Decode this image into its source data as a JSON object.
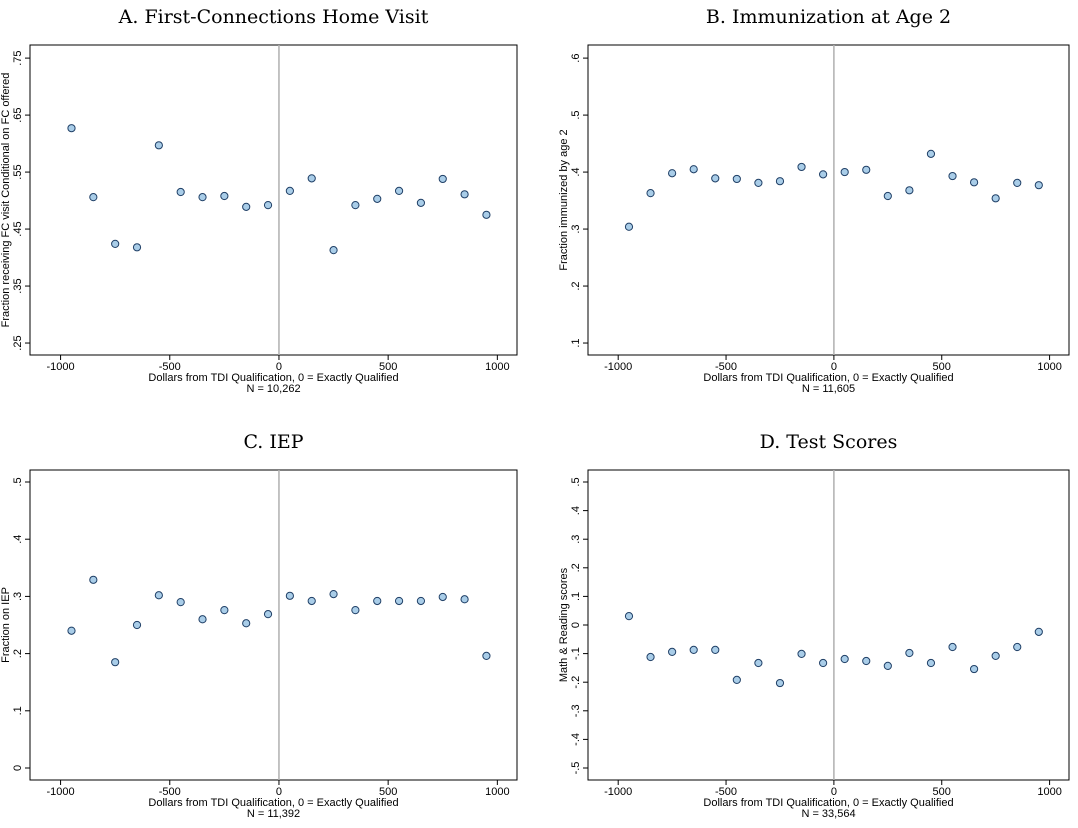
{
  "chart_data": [
    {
      "type": "scatter",
      "title": "A. First-Connections Home Visit",
      "xlabel": "Dollars from TDI Qualification, 0 = Exactly Qualified",
      "note": "N = 10,262",
      "ylabel": "Fraction receiving FC visit Conditional on FC offered",
      "x": [
        -950,
        -850,
        -750,
        -650,
        -550,
        -450,
        -350,
        -250,
        -150,
        -50,
        50,
        150,
        250,
        350,
        450,
        550,
        650,
        750,
        850,
        950
      ],
      "values": [
        0.627,
        0.506,
        0.424,
        0.418,
        0.597,
        0.515,
        0.506,
        0.508,
        0.489,
        0.492,
        0.517,
        0.539,
        0.413,
        0.492,
        0.503,
        0.517,
        0.496,
        0.538,
        0.511,
        0.475
      ],
      "xlim": [
        -1140,
        1090
      ],
      "xticks": [
        -1000,
        -500,
        0,
        500,
        1000
      ],
      "vline": 0,
      "ylim": [
        0.229,
        0.773
      ],
      "yticks": [
        {
          "value": 0.25,
          "label": ".25"
        },
        {
          "value": 0.35,
          "label": ".35"
        },
        {
          "value": 0.45,
          "label": ".45"
        },
        {
          "value": 0.55,
          "label": ".55"
        },
        {
          "value": 0.65,
          "label": ".65"
        },
        {
          "value": 0.75,
          "label": ".75"
        }
      ],
      "color": "#a9cde8",
      "edge_color": "#1f3f66",
      "grid": false
    },
    {
      "type": "scatter",
      "title": "B. Immunization at Age 2",
      "xlabel": "Dollars from TDI Qualification, 0 = Exactly Qualified",
      "note": "N = 11,605",
      "ylabel": "Fraction immunized by age 2",
      "x": [
        -950,
        -850,
        -750,
        -650,
        -550,
        -450,
        -350,
        -250,
        -150,
        -50,
        50,
        150,
        250,
        350,
        450,
        550,
        650,
        750,
        850,
        950
      ],
      "values": [
        0.304,
        0.363,
        0.398,
        0.405,
        0.389,
        0.388,
        0.381,
        0.384,
        0.409,
        0.396,
        0.4,
        0.404,
        0.358,
        0.368,
        0.432,
        0.393,
        0.382,
        0.354,
        0.381,
        0.377
      ],
      "xlim": [
        -1140,
        1090
      ],
      "xticks": [
        -1000,
        -500,
        0,
        500,
        1000
      ],
      "vline": 0,
      "ylim": [
        0.079,
        0.623
      ],
      "yticks": [
        {
          "value": 0.1,
          "label": ".1"
        },
        {
          "value": 0.2,
          "label": ".2"
        },
        {
          "value": 0.3,
          "label": ".3"
        },
        {
          "value": 0.4,
          "label": ".4"
        },
        {
          "value": 0.5,
          "label": ".5"
        },
        {
          "value": 0.6,
          "label": ".6"
        }
      ],
      "color": "#a9cde8",
      "edge_color": "#1f3f66",
      "grid": false
    },
    {
      "type": "scatter",
      "title": "C. IEP",
      "xlabel": "Dollars from TDI Qualification, 0 = Exactly Qualified",
      "note": "N = 11,392",
      "ylabel": "Fraction on IEP",
      "x": [
        -950,
        -850,
        -750,
        -650,
        -550,
        -450,
        -350,
        -250,
        -150,
        -50,
        50,
        150,
        250,
        350,
        450,
        550,
        650,
        750,
        850,
        950
      ],
      "values": [
        0.24,
        0.329,
        0.185,
        0.25,
        0.302,
        0.29,
        0.26,
        0.276,
        0.253,
        0.269,
        0.301,
        0.292,
        0.304,
        0.276,
        0.292,
        0.292,
        0.292,
        0.299,
        0.295,
        0.196
      ],
      "xlim": [
        -1140,
        1090
      ],
      "xticks": [
        -1000,
        -500,
        0,
        500,
        1000
      ],
      "vline": 0,
      "ylim": [
        -0.021,
        0.521
      ],
      "yticks": [
        0,
        {
          "value": 0.1,
          "label": ".1"
        },
        {
          "value": 0.2,
          "label": ".2"
        },
        {
          "value": 0.3,
          "label": ".3"
        },
        {
          "value": 0.4,
          "label": ".4"
        },
        {
          "value": 0.5,
          "label": ".5"
        }
      ],
      "color": "#a9cde8",
      "edge_color": "#1f3f66",
      "grid": false
    },
    {
      "type": "scatter",
      "title": "D. Test Scores",
      "xlabel": "Dollars from TDI Qualification, 0 = Exactly Qualified",
      "note": "N = 33,564",
      "ylabel": "Math & Reading scores",
      "x": [
        -950,
        -850,
        -750,
        -650,
        -550,
        -450,
        -350,
        -250,
        -150,
        -50,
        50,
        150,
        250,
        350,
        450,
        550,
        650,
        750,
        850,
        950
      ],
      "values": [
        0.031,
        -0.112,
        -0.094,
        -0.087,
        -0.087,
        -0.192,
        -0.133,
        -0.203,
        -0.101,
        -0.133,
        -0.119,
        -0.126,
        -0.143,
        -0.098,
        -0.133,
        -0.077,
        -0.154,
        -0.108,
        -0.077,
        -0.024
      ],
      "xlim": [
        -1140,
        1090
      ],
      "xticks": [
        -1000,
        -500,
        0,
        500,
        1000
      ],
      "vline": 0,
      "ylim": [
        -0.542,
        0.542
      ],
      "yticks": [
        {
          "value": -0.5,
          "label": "-.5"
        },
        {
          "value": -0.4,
          "label": "-.4"
        },
        {
          "value": -0.3,
          "label": "-.3"
        },
        {
          "value": -0.2,
          "label": "-.2"
        },
        {
          "value": -0.1,
          "label": "-.1"
        },
        0,
        {
          "value": 0.1,
          "label": ".1"
        },
        {
          "value": 0.2,
          "label": ".2"
        },
        {
          "value": 0.3,
          "label": ".3"
        },
        {
          "value": 0.4,
          "label": ".4"
        },
        {
          "value": 0.5,
          "label": ".5"
        }
      ],
      "color": "#a9cde8",
      "edge_color": "#1f3f66",
      "grid": false
    }
  ]
}
